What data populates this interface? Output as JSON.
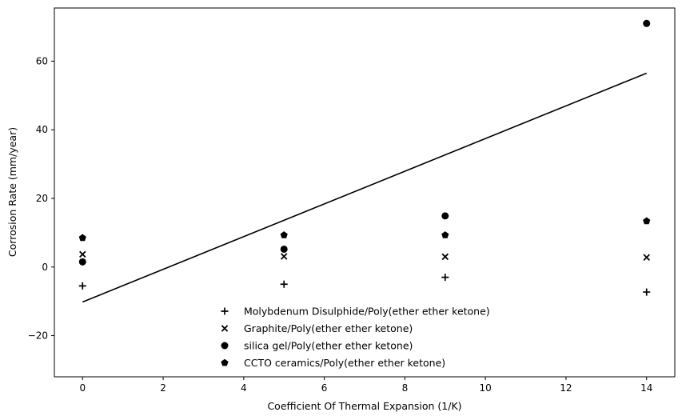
{
  "chart_data": {
    "type": "scatter",
    "title": "",
    "xlabel": "Coefficient Of Thermal Expansion (1/K)",
    "ylabel": "Corrosion Rate (mm/year)",
    "xlim": [
      -0.7,
      14.7
    ],
    "ylim": [
      -32.0,
      75.5
    ],
    "xticks": [
      0,
      2,
      4,
      6,
      8,
      10,
      12,
      14
    ],
    "yticks": [
      -20,
      0,
      20,
      40,
      60
    ],
    "xtick_labels": [
      "0",
      "2",
      "4",
      "6",
      "8",
      "10",
      "12",
      "14"
    ],
    "ytick_labels": [
      "−20",
      "0",
      "20",
      "40",
      "60"
    ],
    "grid": false,
    "legend_position": "lower-center",
    "series": [
      {
        "name": "Molybdenum Disulphide/Poly(ether ether ketone)",
        "marker": "plus",
        "x": [
          0,
          5,
          9,
          14
        ],
        "y": [
          -5.5,
          -5.0,
          -3.0,
          -7.3
        ]
      },
      {
        "name": "Graphite/Poly(ether ether ketone)",
        "marker": "x",
        "x": [
          0,
          5,
          9,
          14
        ],
        "y": [
          3.7,
          3.1,
          3.0,
          2.8
        ]
      },
      {
        "name": "silica gel/Poly(ether ether ketone)",
        "marker": "circle",
        "x": [
          0,
          5,
          9,
          14
        ],
        "y": [
          1.5,
          5.2,
          14.9,
          71.0
        ]
      },
      {
        "name": "CCTO ceramics/Poly(ether ether ketone)",
        "marker": "pentagon",
        "x": [
          0,
          5,
          9,
          14
        ],
        "y": [
          8.5,
          9.3,
          9.3,
          13.4
        ]
      }
    ],
    "fit_line": {
      "x": [
        0,
        14
      ],
      "y": [
        -10.2,
        56.5
      ]
    },
    "colors": {
      "marker": "#000000",
      "line": "#000000",
      "axes": "#000000"
    }
  }
}
